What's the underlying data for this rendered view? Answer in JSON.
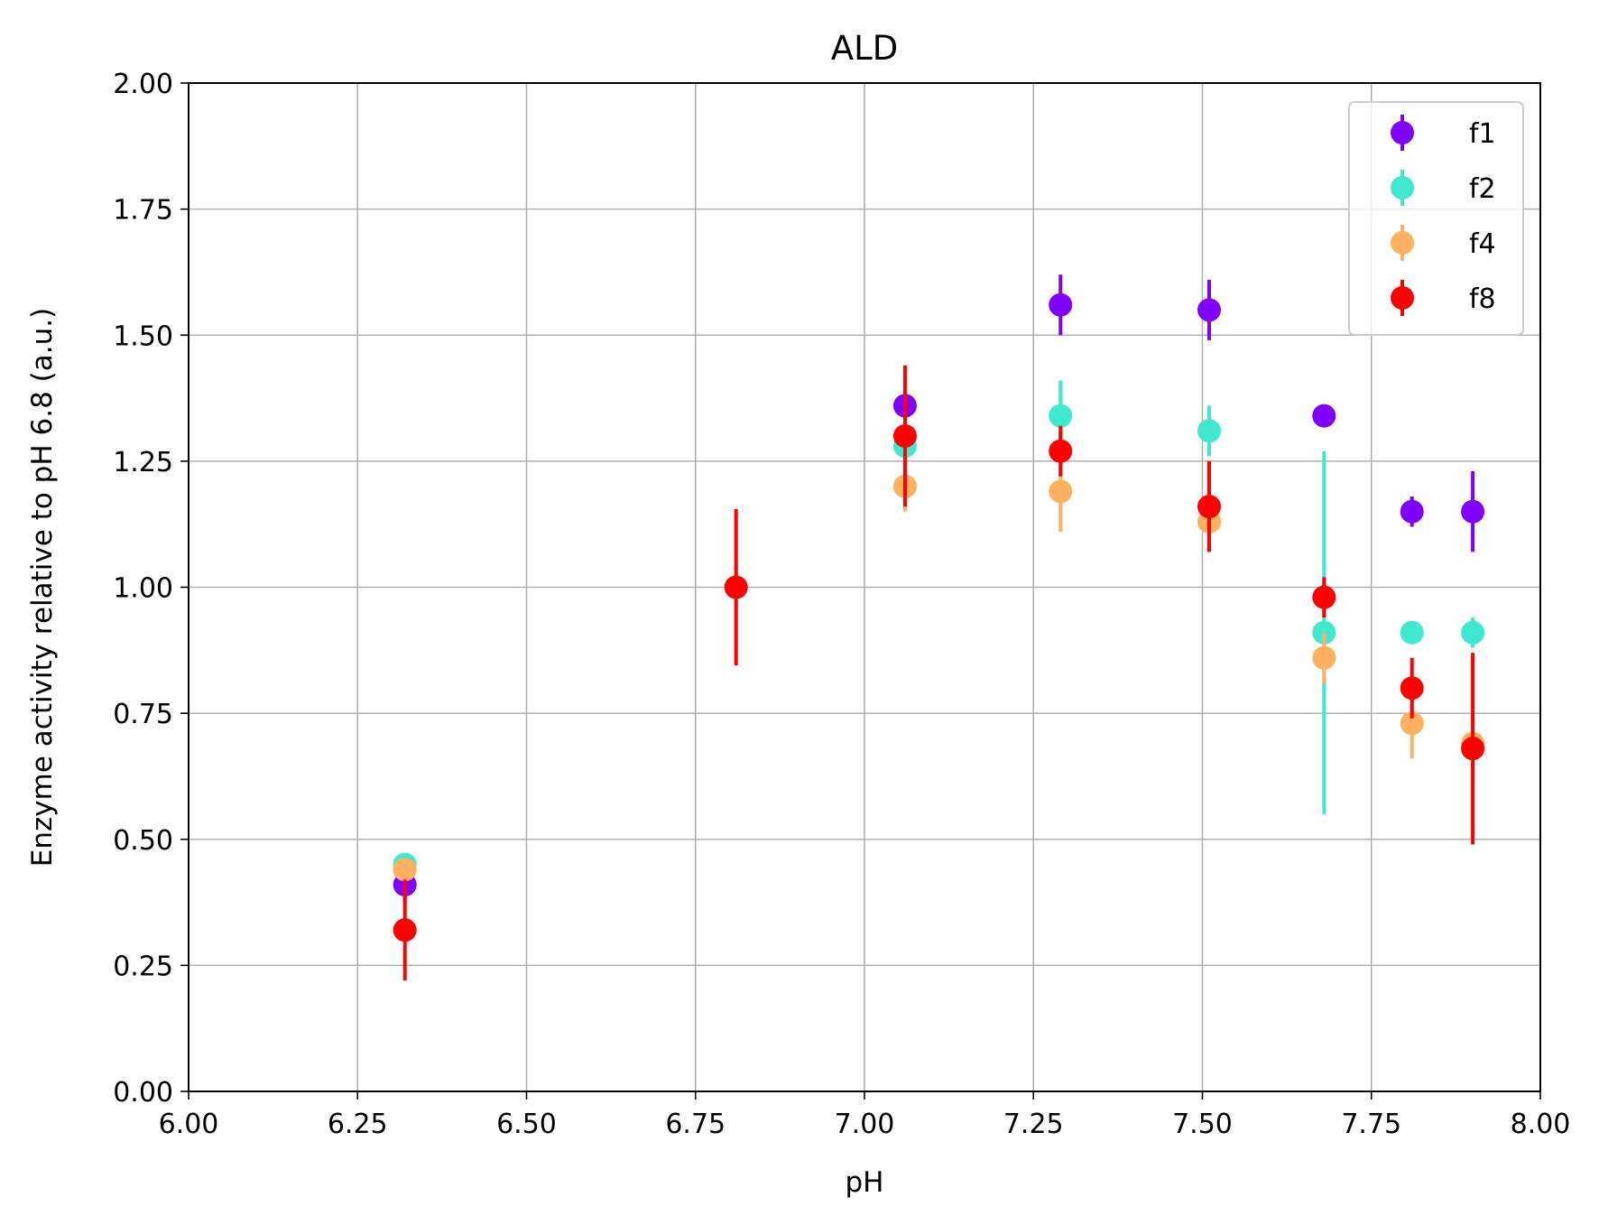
{
  "chart_data": {
    "type": "scatter",
    "title": "ALD",
    "xlabel": "pH",
    "ylabel": "Enzyme activity relative to pH 6.8 (a.u.)",
    "xlim": [
      6.0,
      8.0
    ],
    "ylim": [
      0.0,
      2.0
    ],
    "xticks": [
      "6.00",
      "6.25",
      "6.50",
      "6.75",
      "7.00",
      "7.25",
      "7.50",
      "7.75",
      "8.00"
    ],
    "yticks": [
      "0.00",
      "0.25",
      "0.50",
      "0.75",
      "1.00",
      "1.25",
      "1.50",
      "1.75",
      "2.00"
    ],
    "grid": true,
    "legend_position": "top-right",
    "error_bars": true,
    "series": [
      {
        "name": "f1",
        "color": "#8000ff",
        "points": [
          {
            "x": 6.32,
            "y": 0.41,
            "err": 0.03
          },
          {
            "x": 7.06,
            "y": 1.36,
            "err": 0.02
          },
          {
            "x": 7.29,
            "y": 1.56,
            "err": 0.06
          },
          {
            "x": 7.51,
            "y": 1.55,
            "err": 0.06
          },
          {
            "x": 7.68,
            "y": 1.34,
            "err": 0.01
          },
          {
            "x": 7.81,
            "y": 1.15,
            "err": 0.03
          },
          {
            "x": 7.9,
            "y": 1.15,
            "err": 0.08
          }
        ]
      },
      {
        "name": "f2",
        "color": "#40e8d0",
        "points": [
          {
            "x": 6.32,
            "y": 0.45,
            "err": 0.01
          },
          {
            "x": 7.06,
            "y": 1.28,
            "err": 0.02
          },
          {
            "x": 7.29,
            "y": 1.34,
            "err": 0.07
          },
          {
            "x": 7.51,
            "y": 1.31,
            "err": 0.05
          },
          {
            "x": 7.68,
            "y": 0.91,
            "err": 0.36
          },
          {
            "x": 7.81,
            "y": 0.91,
            "err": 0.02
          },
          {
            "x": 7.9,
            "y": 0.91,
            "err": 0.03
          }
        ]
      },
      {
        "name": "f4",
        "color": "#ffb060",
        "points": [
          {
            "x": 6.32,
            "y": 0.44,
            "err": 0.02
          },
          {
            "x": 7.06,
            "y": 1.2,
            "err": 0.05
          },
          {
            "x": 7.29,
            "y": 1.19,
            "err": 0.08
          },
          {
            "x": 7.51,
            "y": 1.13,
            "err": 0.03
          },
          {
            "x": 7.68,
            "y": 0.86,
            "err": 0.05
          },
          {
            "x": 7.81,
            "y": 0.73,
            "err": 0.07
          },
          {
            "x": 7.9,
            "y": 0.69,
            "err": 0.02
          }
        ]
      },
      {
        "name": "f8",
        "color": "#ff0000",
        "points": [
          {
            "x": 6.32,
            "y": 0.32,
            "err": 0.1
          },
          {
            "x": 6.81,
            "y": 1.0,
            "err": 0.155
          },
          {
            "x": 7.06,
            "y": 1.3,
            "err": 0.14
          },
          {
            "x": 7.29,
            "y": 1.27,
            "err": 0.05
          },
          {
            "x": 7.51,
            "y": 1.16,
            "err": 0.09
          },
          {
            "x": 7.68,
            "y": 0.98,
            "err": 0.04
          },
          {
            "x": 7.81,
            "y": 0.8,
            "err": 0.06
          },
          {
            "x": 7.9,
            "y": 0.68,
            "err": 0.19
          }
        ]
      }
    ]
  }
}
